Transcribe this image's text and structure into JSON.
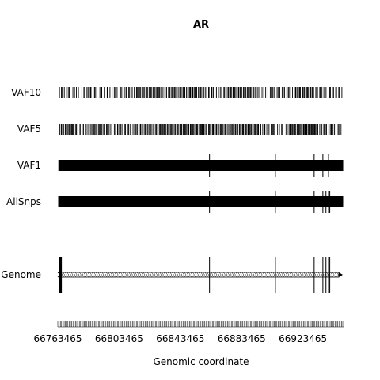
{
  "chart_data": {
    "type": "genomic-track",
    "title": "AR",
    "xlabel": "Genomic coordinate",
    "ylabel": "",
    "xlim": [
      66763465,
      66950000
    ],
    "x_ticks": [
      66763465,
      66803465,
      66843465,
      66883465,
      66923465
    ],
    "tracks": [
      {
        "name": "VAF10",
        "marks": [
          {
            "start": 66764000,
            "end": 66772000,
            "density": 0.45
          },
          {
            "start": 66772000,
            "end": 66781000,
            "density": 0.35
          },
          {
            "start": 66781000,
            "end": 66792000,
            "density": 0.5
          },
          {
            "start": 66792000,
            "end": 66802000,
            "density": 0.4
          },
          {
            "start": 66802000,
            "end": 66812000,
            "density": 0.5
          },
          {
            "start": 66812000,
            "end": 66828000,
            "density": 0.7
          },
          {
            "start": 66828000,
            "end": 66843000,
            "density": 0.65
          },
          {
            "start": 66843000,
            "end": 66858000,
            "density": 0.8
          },
          {
            "start": 66858000,
            "end": 66867000,
            "density": 0.5
          },
          {
            "start": 66867000,
            "end": 66875000,
            "density": 0.6
          },
          {
            "start": 66875000,
            "end": 66892000,
            "density": 0.85
          },
          {
            "start": 66892000,
            "end": 66900000,
            "density": 0.4
          },
          {
            "start": 66900000,
            "end": 66909000,
            "density": 0.45
          },
          {
            "start": 66909000,
            "end": 66918000,
            "density": 0.5
          },
          {
            "start": 66918000,
            "end": 66930000,
            "density": 0.8
          },
          {
            "start": 66930000,
            "end": 66949000,
            "density": 0.55
          }
        ],
        "tall_lines": []
      },
      {
        "name": "VAF5",
        "marks": [
          {
            "start": 66764000,
            "end": 66776000,
            "density": 0.8
          },
          {
            "start": 66776000,
            "end": 66785000,
            "density": 0.5
          },
          {
            "start": 66785000,
            "end": 66796000,
            "density": 0.7
          },
          {
            "start": 66796000,
            "end": 66808000,
            "density": 0.55
          },
          {
            "start": 66808000,
            "end": 66828000,
            "density": 0.65
          },
          {
            "start": 66828000,
            "end": 66845000,
            "density": 0.75
          },
          {
            "start": 66845000,
            "end": 66860000,
            "density": 0.9
          },
          {
            "start": 66860000,
            "end": 66876000,
            "density": 0.7
          },
          {
            "start": 66876000,
            "end": 66895000,
            "density": 0.85
          },
          {
            "start": 66895000,
            "end": 66905000,
            "density": 0.55
          },
          {
            "start": 66905000,
            "end": 66914000,
            "density": 0.4
          },
          {
            "start": 66914000,
            "end": 66933000,
            "density": 0.9
          },
          {
            "start": 66933000,
            "end": 66949000,
            "density": 0.6
          }
        ],
        "tall_lines": []
      },
      {
        "name": "VAF1",
        "marks": [
          {
            "start": 66764000,
            "end": 66800000,
            "density": 2.2
          },
          {
            "start": 66800000,
            "end": 66840000,
            "density": 2.8
          },
          {
            "start": 66840000,
            "end": 66900000,
            "density": 3.5
          },
          {
            "start": 66900000,
            "end": 66949500,
            "density": 3.0
          }
        ],
        "tall_lines": [
          66862500,
          66905500,
          66930800,
          66936500,
          66940200
        ]
      },
      {
        "name": "AllSnps",
        "marks": [
          {
            "start": 66764000,
            "end": 66949500,
            "density": 6.0
          }
        ],
        "tall_lines": [
          66862500,
          66905500,
          66930800,
          66936500,
          66938500,
          66940200,
          66941000
        ]
      },
      {
        "name": "Genome",
        "marks": [],
        "tall_lines": [
          66765200,
          66862500,
          66905500,
          66930800,
          66936500,
          66938500,
          66940200,
          66941000
        ],
        "gene_start": 66763465,
        "gene_end": 66950000
      }
    ],
    "grid": false,
    "legend": "none"
  }
}
